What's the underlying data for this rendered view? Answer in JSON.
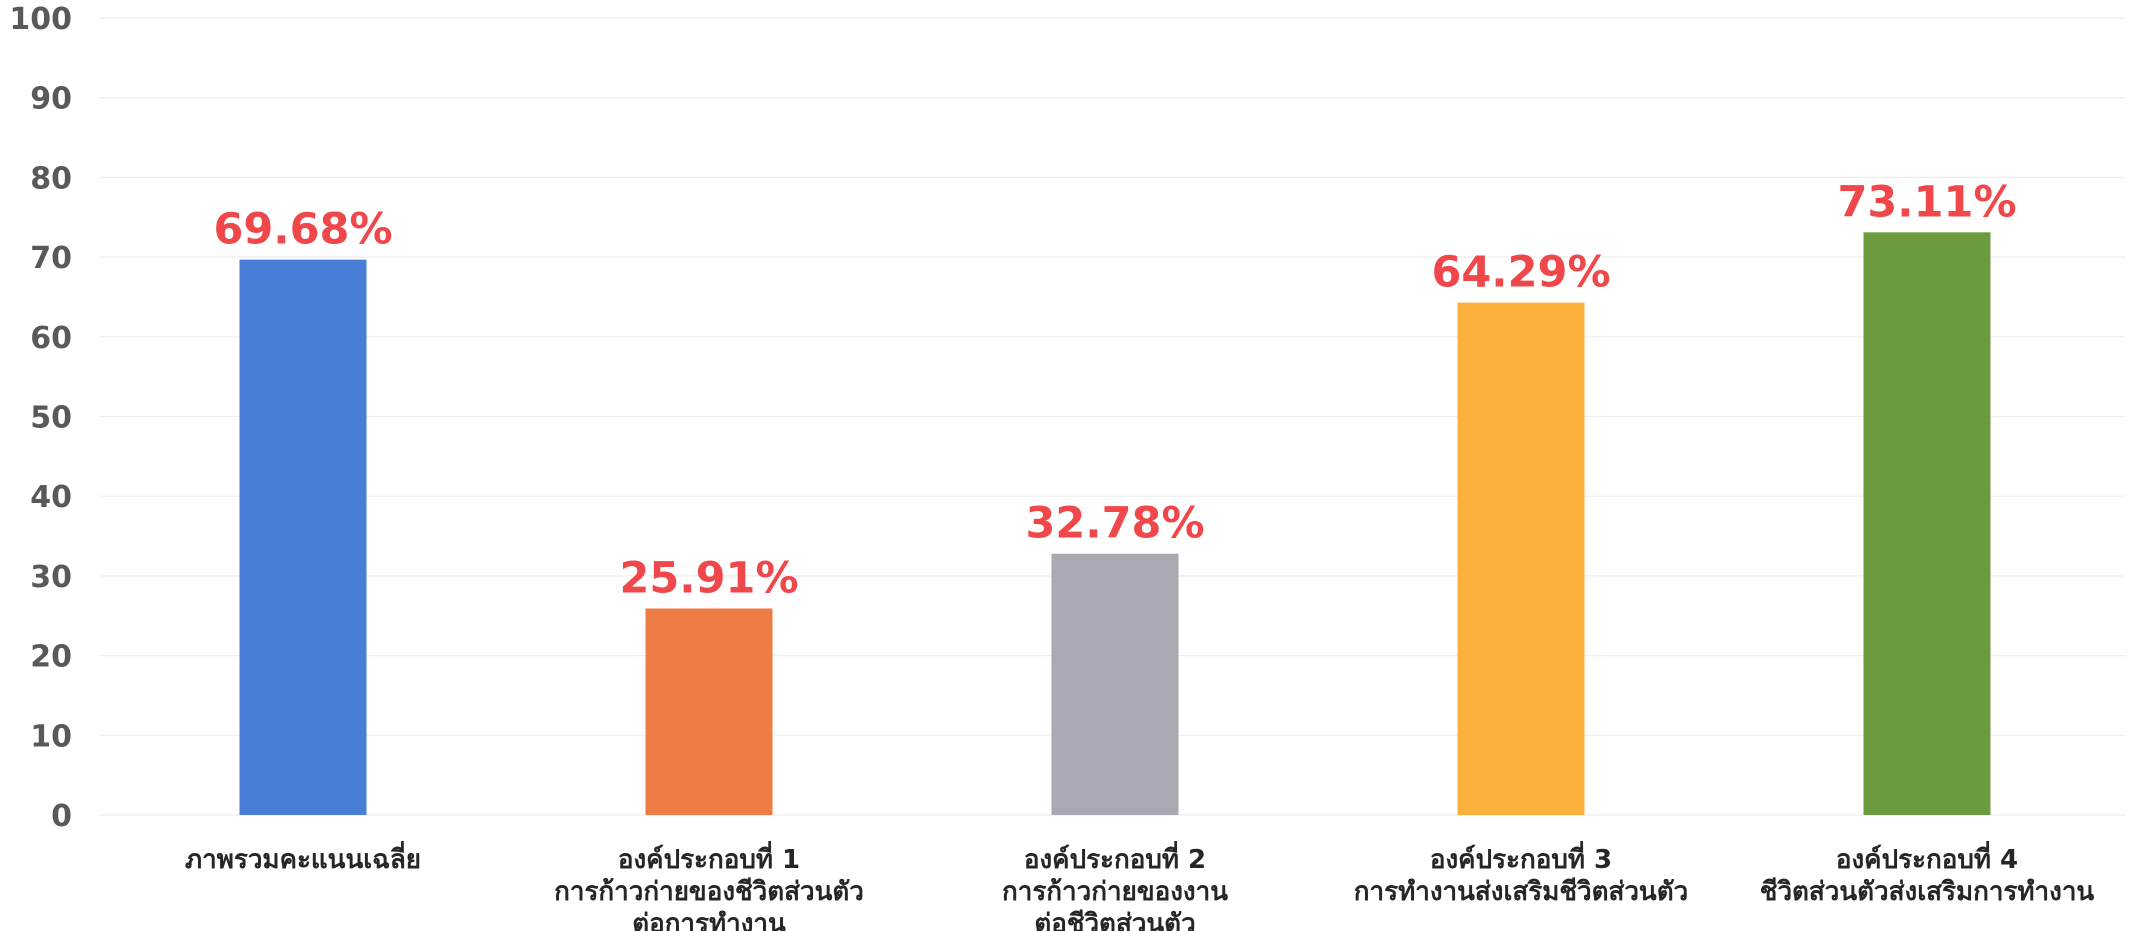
{
  "chart_data": {
    "type": "bar",
    "title": "",
    "xlabel": "",
    "ylabel": "",
    "ylim": [
      0,
      100
    ],
    "yticks": [
      0,
      10,
      20,
      30,
      40,
      50,
      60,
      70,
      80,
      90,
      100
    ],
    "grid": true,
    "legend": "none",
    "categories": [
      [
        "ภาพรวมคะแนนเฉลี่ย"
      ],
      [
        "องค์ประกอบที่ 1",
        "การก้าวก่ายของชีวิตส่วนตัว",
        "ต่อการทำงาน"
      ],
      [
        "องค์ประกอบที่ 2",
        "การก้าวก่ายของงาน",
        "ต่อชีวิตส่วนตัว"
      ],
      [
        "องค์ประกอบที่ 3",
        "การทำงานส่งเสริมชีวิตส่วนตัว"
      ],
      [
        "องค์ประกอบที่ 4",
        "ชีวิตส่วนตัวส่งเสริมการทำงาน"
      ]
    ],
    "values": [
      69.68,
      25.91,
      32.78,
      64.29,
      73.11
    ],
    "data_labels": [
      "69.68%",
      "25.91%",
      "32.78%",
      "64.29%",
      "73.11%"
    ],
    "colors": [
      "#4a7ed6",
      "#ef7b45",
      "#a9a8b3",
      "#fbb13c",
      "#6a9c3e"
    ],
    "label_color": "#f0474b"
  }
}
